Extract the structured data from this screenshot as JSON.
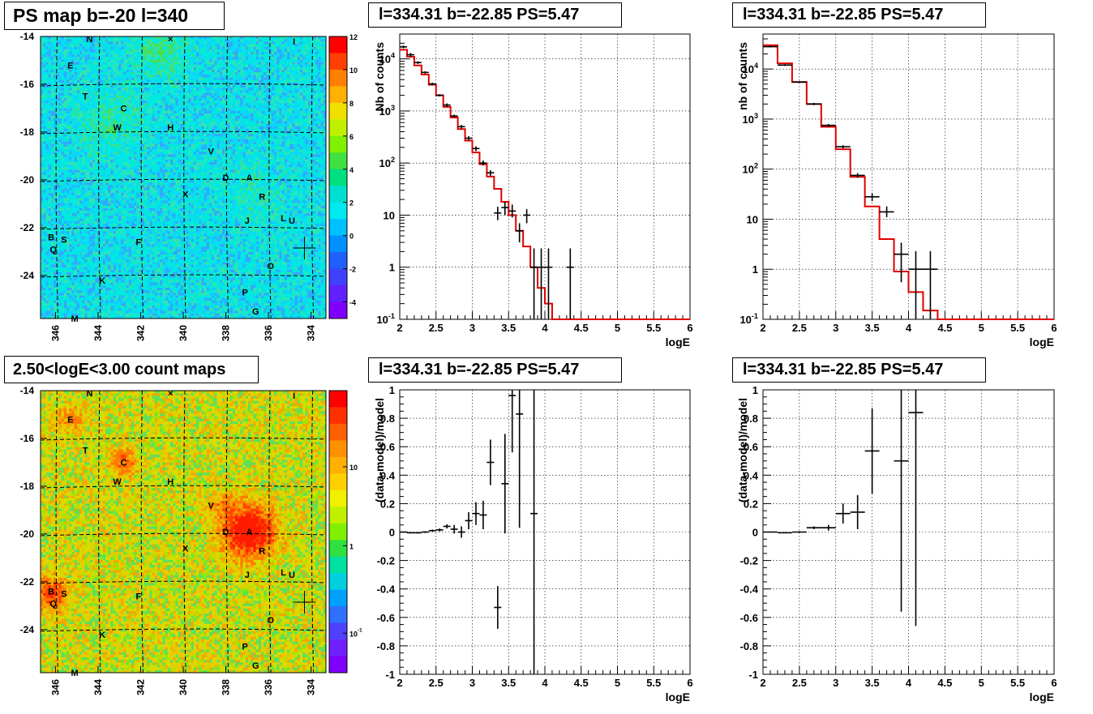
{
  "panels": {
    "map1": {
      "title": "PS map b=-20 l=340",
      "colorbar_ticks": [
        "12",
        "10",
        "8",
        "6",
        "4",
        "2",
        "0",
        "-2",
        "-4"
      ],
      "colorscale": "linear",
      "range": [
        -5,
        12
      ]
    },
    "map2": {
      "title": "2.50<logE<3.00 count maps",
      "colorbar_ticks": [
        "10",
        "1",
        "10^-1"
      ],
      "colorscale": "log"
    },
    "spec1": {
      "title": "l=334.31 b=-22.85 PS=5.47",
      "ylabel": "Nb of counts",
      "xlabel": "logE"
    },
    "spec2": {
      "title": "l=334.31 b=-22.85 PS=5.47",
      "ylabel": "nb of counts",
      "xlabel": "logE"
    },
    "res1": {
      "title": "l=334.31 b=-22.85 PS=5.47",
      "ylabel": "(data-model)/model",
      "xlabel": "logE"
    },
    "res2": {
      "title": "l=334.31 b=-22.85 PS=5.47",
      "ylabel": "(data-model)/model",
      "xlabel": "logE"
    }
  },
  "map_axes": {
    "x_ticks": [
      "346",
      "344",
      "342",
      "340",
      "338",
      "336",
      "334"
    ],
    "y_ticks": [
      "-14",
      "-16",
      "-18",
      "-20",
      "-22",
      "-24"
    ],
    "xlim": [
      346.7,
      333.3
    ],
    "ylim": [
      -25.8,
      -14
    ]
  },
  "map_labels": [
    {
      "t": "N",
      "l": 344.4,
      "b": -14.1
    },
    {
      "t": "×",
      "l": 340.6,
      "b": -14.1
    },
    {
      "t": "I",
      "l": 334.8,
      "b": -14.2
    },
    {
      "t": "E",
      "l": 345.3,
      "b": -15.2
    },
    {
      "t": "T",
      "l": 344.6,
      "b": -16.5
    },
    {
      "t": "C",
      "l": 342.8,
      "b": -17.0
    },
    {
      "t": "W",
      "l": 343.1,
      "b": -17.8
    },
    {
      "t": "H",
      "l": 340.6,
      "b": -17.8
    },
    {
      "t": "V",
      "l": 338.7,
      "b": -18.8
    },
    {
      "t": "D",
      "l": 338.0,
      "b": -19.9
    },
    {
      "t": "A",
      "l": 336.9,
      "b": -19.9
    },
    {
      "t": "X",
      "l": 339.9,
      "b": -20.6
    },
    {
      "t": "R",
      "l": 336.3,
      "b": -20.7
    },
    {
      "t": "J",
      "l": 337.0,
      "b": -21.7
    },
    {
      "t": "L",
      "l": 335.3,
      "b": -21.6
    },
    {
      "t": "U",
      "l": 334.9,
      "b": -21.7
    },
    {
      "t": "B",
      "l": 346.2,
      "b": -22.4
    },
    {
      "t": "S",
      "l": 345.6,
      "b": -22.5
    },
    {
      "t": "Q",
      "l": 346.1,
      "b": -22.9
    },
    {
      "t": "F",
      "l": 342.1,
      "b": -22.6
    },
    {
      "t": "O",
      "l": 335.9,
      "b": -23.6
    },
    {
      "t": "K",
      "l": 343.8,
      "b": -24.2
    },
    {
      "t": "P",
      "l": 337.1,
      "b": -24.7
    },
    {
      "t": "G",
      "l": 336.6,
      "b": -25.5
    },
    {
      "t": "M",
      "l": 345.1,
      "b": -25.8
    }
  ],
  "source": {
    "l": 334.31,
    "b": -22.85
  },
  "chart_data": [
    {
      "type": "line",
      "name": "spec1",
      "xlim": [
        2,
        6
      ],
      "ylim": [
        0.1,
        30000
      ],
      "ylog": true,
      "x_ticks": [
        "2",
        "2.5",
        "3",
        "3.5",
        "4",
        "4.5",
        "5",
        "5.5",
        "6"
      ],
      "y_ticks": [
        "10^-1",
        "1",
        "10",
        "10^2",
        "10^3",
        "10^4"
      ],
      "grid": true,
      "model_edges": [
        2,
        2.1,
        2.2,
        2.3,
        2.4,
        2.5,
        2.6,
        2.7,
        2.8,
        2.9,
        3.0,
        3.1,
        3.2,
        3.3,
        3.4,
        3.5,
        3.6,
        3.7,
        3.8,
        3.9,
        4.0,
        4.1,
        4.2,
        6.0
      ],
      "model_values": [
        15000,
        11000,
        7500,
        5000,
        3200,
        2000,
        1200,
        750,
        450,
        270,
        160,
        95,
        55,
        32,
        18,
        10,
        5,
        2.5,
        1,
        0.4,
        0.2,
        0.1,
        0.05
      ],
      "points": [
        {
          "x": 2.05,
          "y": 17000,
          "yl": 16000,
          "yh": 18000
        },
        {
          "x": 2.15,
          "y": 12000,
          "yl": 11000,
          "yh": 13000
        },
        {
          "x": 2.25,
          "y": 8500,
          "yl": 8000,
          "yh": 9000
        },
        {
          "x": 2.35,
          "y": 5500,
          "yl": 5200,
          "yh": 5800
        },
        {
          "x": 2.45,
          "y": 3300,
          "yl": 3100,
          "yh": 3500
        },
        {
          "x": 2.55,
          "y": 2000,
          "yl": 1900,
          "yh": 2100
        },
        {
          "x": 2.65,
          "y": 1300,
          "yl": 1200,
          "yh": 1400
        },
        {
          "x": 2.75,
          "y": 800,
          "yl": 750,
          "yh": 850
        },
        {
          "x": 2.85,
          "y": 500,
          "yl": 460,
          "yh": 540
        },
        {
          "x": 2.95,
          "y": 300,
          "yl": 270,
          "yh": 330
        },
        {
          "x": 3.05,
          "y": 190,
          "yl": 170,
          "yh": 210
        },
        {
          "x": 3.15,
          "y": 100,
          "yl": 90,
          "yh": 112
        },
        {
          "x": 3.25,
          "y": 65,
          "yl": 57,
          "yh": 73
        },
        {
          "x": 3.35,
          "y": 11,
          "yl": 8,
          "yh": 14.5
        },
        {
          "x": 3.45,
          "y": 14,
          "yl": 10,
          "yh": 18
        },
        {
          "x": 3.55,
          "y": 12,
          "yl": 9,
          "yh": 16
        },
        {
          "x": 3.65,
          "y": 5,
          "yl": 3,
          "yh": 7
        },
        {
          "x": 3.75,
          "y": 10,
          "yl": 7,
          "yh": 13
        },
        {
          "x": 3.85,
          "y": 1,
          "yl": 0.1,
          "yh": 2.3
        },
        {
          "x": 3.95,
          "y": 1,
          "yl": 0.1,
          "yh": 2.3
        },
        {
          "x": 4.05,
          "y": 1,
          "yl": 0.1,
          "yh": 2.3
        },
        {
          "x": 4.35,
          "y": 1,
          "yl": 0.1,
          "yh": 2.3
        }
      ]
    },
    {
      "type": "line",
      "name": "spec2",
      "xlim": [
        2,
        6
      ],
      "ylim": [
        0.1,
        50000
      ],
      "ylog": true,
      "x_ticks": [
        "2",
        "2.5",
        "3",
        "3.5",
        "4",
        "4.5",
        "5",
        "5.5",
        "6"
      ],
      "y_ticks": [
        "10^-1",
        "1",
        "10",
        "10^2",
        "10^3",
        "10^4"
      ],
      "grid": true,
      "model_edges": [
        2,
        2.2,
        2.4,
        2.6,
        2.8,
        3.0,
        3.2,
        3.4,
        3.6,
        3.8,
        4.0,
        4.2,
        4.4,
        6.0
      ],
      "model_values": [
        30000,
        13000,
        5500,
        2000,
        700,
        250,
        70,
        18,
        4,
        0.9,
        0.35,
        0.15,
        0.05
      ],
      "points": [
        {
          "x": 2.1,
          "y": 28000,
          "yl": 27000,
          "yh": 29000
        },
        {
          "x": 2.3,
          "y": 12000,
          "yl": 11500,
          "yh": 12500
        },
        {
          "x": 2.5,
          "y": 5500,
          "yl": 5300,
          "yh": 5700
        },
        {
          "x": 2.7,
          "y": 2000,
          "yl": 1900,
          "yh": 2100
        },
        {
          "x": 2.9,
          "y": 750,
          "yl": 700,
          "yh": 800
        },
        {
          "x": 3.1,
          "y": 280,
          "yl": 260,
          "yh": 300
        },
        {
          "x": 3.3,
          "y": 75,
          "yl": 67,
          "yh": 83
        },
        {
          "x": 3.5,
          "y": 28,
          "yl": 23,
          "yh": 33
        },
        {
          "x": 3.7,
          "y": 14,
          "yl": 11,
          "yh": 18
        },
        {
          "x": 3.9,
          "y": 2,
          "yl": 0.55,
          "yh": 3.4
        },
        {
          "x": 4.1,
          "y": 1,
          "yl": 0.1,
          "yh": 2.3
        },
        {
          "x": 4.3,
          "y": 1,
          "yl": 0.1,
          "yh": 2.3
        }
      ]
    },
    {
      "type": "scatter",
      "name": "res1",
      "xlim": [
        2,
        6
      ],
      "ylim": [
        -1,
        1
      ],
      "x_ticks": [
        "2",
        "2.5",
        "3",
        "3.5",
        "4",
        "4.5",
        "5",
        "5.5",
        "6"
      ],
      "y_ticks": [
        "-1",
        "-0.8",
        "-0.6",
        "-0.4",
        "-0.2",
        "0",
        "0.2",
        "0.4",
        "0.6",
        "0.8",
        "1"
      ],
      "grid": true,
      "binw": 0.1,
      "points": [
        {
          "x": 2.05,
          "y": 0.0,
          "e": 0.003
        },
        {
          "x": 2.15,
          "y": -0.005,
          "e": 0.004
        },
        {
          "x": 2.25,
          "y": -0.005,
          "e": 0.005
        },
        {
          "x": 2.35,
          "y": 0.0,
          "e": 0.006
        },
        {
          "x": 2.45,
          "y": 0.01,
          "e": 0.008
        },
        {
          "x": 2.55,
          "y": 0.015,
          "e": 0.01
        },
        {
          "x": 2.65,
          "y": 0.04,
          "e": 0.015
        },
        {
          "x": 2.75,
          "y": 0.02,
          "e": 0.03
        },
        {
          "x": 2.85,
          "y": 0.0,
          "e": 0.04
        },
        {
          "x": 2.95,
          "y": 0.08,
          "e": 0.06
        },
        {
          "x": 3.05,
          "y": 0.13,
          "e": 0.08
        },
        {
          "x": 3.15,
          "y": 0.12,
          "e": 0.1
        },
        {
          "x": 3.25,
          "y": 0.49,
          "e": 0.16
        },
        {
          "x": 3.35,
          "y": -0.53,
          "e": 0.15
        },
        {
          "x": 3.45,
          "y": 0.34,
          "e": 0.35
        },
        {
          "x": 3.55,
          "y": 0.96,
          "e": 0.4
        },
        {
          "x": 3.65,
          "y": 0.83,
          "e": 0.8
        },
        {
          "x": 3.85,
          "y": 0.13,
          "e": 1.5
        }
      ]
    },
    {
      "type": "scatter",
      "name": "res2",
      "xlim": [
        2,
        6
      ],
      "ylim": [
        -1,
        1
      ],
      "x_ticks": [
        "2",
        "2.5",
        "3",
        "3.5",
        "4",
        "4.5",
        "5",
        "5.5",
        "6"
      ],
      "y_ticks": [
        "-1",
        "-0.8",
        "-0.6",
        "-0.4",
        "-0.2",
        "0",
        "0.2",
        "0.4",
        "0.6",
        "0.8",
        "1"
      ],
      "grid": true,
      "binw": 0.2,
      "points": [
        {
          "x": 2.1,
          "y": 0.0,
          "e": 0.003
        },
        {
          "x": 2.3,
          "y": -0.005,
          "e": 0.004
        },
        {
          "x": 2.5,
          "y": 0.0,
          "e": 0.006
        },
        {
          "x": 2.7,
          "y": 0.03,
          "e": 0.01
        },
        {
          "x": 2.9,
          "y": 0.03,
          "e": 0.02
        },
        {
          "x": 3.1,
          "y": 0.13,
          "e": 0.07
        },
        {
          "x": 3.3,
          "y": 0.14,
          "e": 0.12
        },
        {
          "x": 3.5,
          "y": 0.57,
          "e": 0.3
        },
        {
          "x": 3.9,
          "y": 0.5,
          "e": 1.06
        },
        {
          "x": 4.1,
          "y": 0.84,
          "e": 1.5
        }
      ]
    }
  ]
}
